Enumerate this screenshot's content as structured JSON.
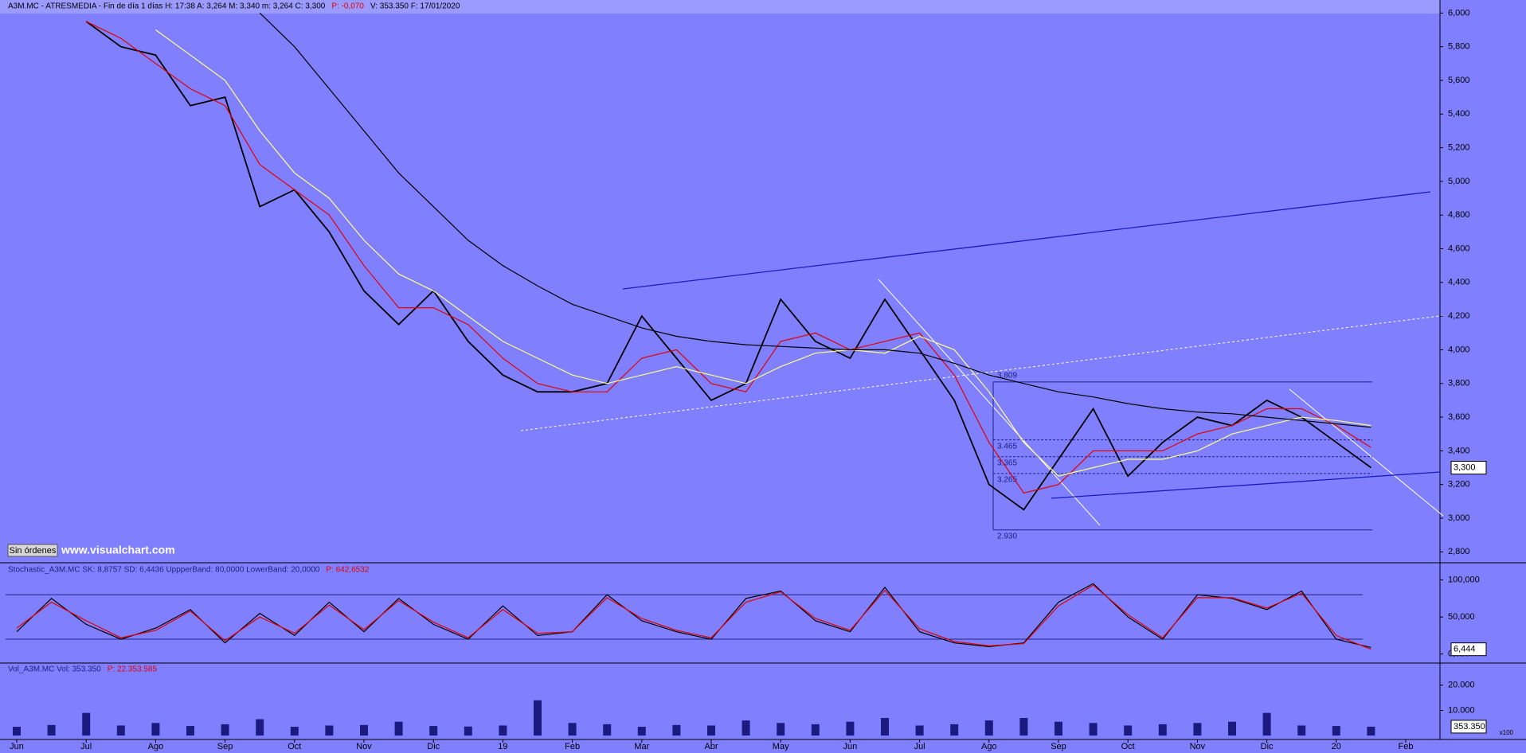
{
  "chart_data": [
    {
      "type": "line",
      "title": "A3M.MC - ATRESMEDIA - Fin de día 1 días  H: 17:38  A: 3,264  M: 3,340  m: 3,264  C: 3,300",
      "subtitle": "P: -0,070",
      "note": "V: 353.350  F: 17/01/2020",
      "categories": [
        "Jun",
        null,
        "Jul",
        null,
        "Ago",
        null,
        "Sep",
        null,
        "Oct",
        null,
        "Nov",
        null,
        "Dic",
        null,
        "19",
        null,
        "Feb",
        null,
        "Mar",
        null,
        "Abr",
        null,
        "May",
        null,
        "Jun",
        null,
        "Jul",
        null,
        "Ago",
        null,
        "Sep",
        null,
        "Oct",
        null,
        "Nov",
        null,
        "Dic",
        null,
        "20",
        null,
        "Feb"
      ],
      "series": [
        {
          "name": "close",
          "color": "#000000",
          "values": [
            null,
            null,
            5.95,
            5.8,
            5.75,
            5.45,
            5.5,
            4.85,
            4.95,
            4.7,
            4.35,
            4.15,
            4.35,
            4.05,
            3.85,
            3.75,
            3.75,
            3.8,
            4.2,
            3.95,
            3.7,
            3.8,
            4.3,
            4.05,
            3.95,
            4.3,
            4.0,
            3.7,
            3.2,
            3.05,
            3.35,
            3.65,
            3.25,
            3.45,
            3.6,
            3.55,
            3.7,
            3.6,
            3.45,
            3.3,
            null
          ]
        },
        {
          "name": "ma-fast",
          "color": "#e00000",
          "values": [
            null,
            null,
            5.95,
            5.85,
            5.7,
            5.55,
            5.45,
            5.1,
            4.95,
            4.8,
            4.5,
            4.25,
            4.25,
            4.15,
            3.95,
            3.8,
            3.75,
            3.75,
            3.95,
            4.0,
            3.8,
            3.75,
            4.05,
            4.1,
            4.0,
            4.05,
            4.1,
            3.85,
            3.45,
            3.15,
            3.2,
            3.4,
            3.4,
            3.4,
            3.5,
            3.55,
            3.65,
            3.65,
            3.55,
            3.42,
            null
          ]
        },
        {
          "name": "ma-mid",
          "color": "#ffff80",
          "values": [
            null,
            null,
            null,
            null,
            5.9,
            5.75,
            5.6,
            5.3,
            5.05,
            4.9,
            4.65,
            4.45,
            4.35,
            4.2,
            4.05,
            3.95,
            3.85,
            3.8,
            3.85,
            3.9,
            3.85,
            3.8,
            3.9,
            3.98,
            4.0,
            3.98,
            4.08,
            4.0,
            3.75,
            3.45,
            3.25,
            3.3,
            3.35,
            3.35,
            3.4,
            3.5,
            3.55,
            3.6,
            3.58,
            3.55,
            null
          ]
        },
        {
          "name": "ma-slow",
          "color": "#000000",
          "values": [
            null,
            null,
            null,
            null,
            null,
            null,
            null,
            6.0,
            5.8,
            5.55,
            5.3,
            5.05,
            4.85,
            4.65,
            4.5,
            4.38,
            4.27,
            4.2,
            4.13,
            4.08,
            4.05,
            4.03,
            4.02,
            4.01,
            4.0,
            4.0,
            3.98,
            3.92,
            3.85,
            3.8,
            3.75,
            3.72,
            3.68,
            3.65,
            3.63,
            3.62,
            3.6,
            3.58,
            3.56,
            3.54,
            null
          ]
        }
      ],
      "ylim": [
        2.74,
        6.03
      ],
      "yticks": [
        {
          "value": 2.8,
          "label": "2,800"
        },
        {
          "value": 3.0,
          "label": "3,000"
        },
        {
          "value": 3.2,
          "label": "3,200"
        },
        {
          "value": 3.4,
          "label": "3,400"
        },
        {
          "value": 3.6,
          "label": "3,600"
        },
        {
          "value": 3.8,
          "label": "3,800"
        },
        {
          "value": 4.0,
          "label": "4,000"
        },
        {
          "value": 4.2,
          "label": "4,200"
        },
        {
          "value": 4.4,
          "label": "4,400"
        },
        {
          "value": 4.6,
          "label": "4,600"
        },
        {
          "value": 4.8,
          "label": "4,800"
        },
        {
          "value": 5.0,
          "label": "5,000"
        },
        {
          "value": 5.2,
          "label": "5,200"
        },
        {
          "value": 5.4,
          "label": "5,400"
        },
        {
          "value": 5.6,
          "label": "5,600"
        },
        {
          "value": 5.8,
          "label": "5,800"
        },
        {
          "value": 6.0,
          "label": "6,000"
        }
      ],
      "levels": [
        {
          "value": 3.809,
          "label": "3.809"
        },
        {
          "value": 3.465,
          "label": "3.465"
        },
        {
          "value": 3.365,
          "label": "3.365"
        },
        {
          "value": 3.265,
          "label": "3.265"
        },
        {
          "value": 2.93,
          "label": "2.930"
        }
      ],
      "last": {
        "value": 3.3,
        "label": "3,300"
      },
      "button": "Sin órdenes",
      "watermark": "www.visualchart.com"
    },
    {
      "type": "line",
      "title": "Stochastic_A3M.MC  SK: 8,8757  SD: 6,4436  UppperBand: 80,0000  LowerBand: 20,0000",
      "subtitle": "P: 642,6532",
      "series": [
        {
          "name": "SK",
          "color": "#000000",
          "values": [
            30,
            75,
            40,
            20,
            35,
            60,
            15,
            55,
            25,
            70,
            30,
            75,
            40,
            20,
            65,
            25,
            30,
            80,
            45,
            30,
            20,
            75,
            85,
            45,
            30,
            90,
            30,
            15,
            10,
            15,
            70,
            95,
            50,
            20,
            80,
            75,
            60,
            85,
            20,
            8.8757,
            null
          ]
        },
        {
          "name": "SD",
          "color": "#e00000",
          "values": [
            35,
            70,
            45,
            22,
            32,
            58,
            18,
            50,
            28,
            66,
            33,
            72,
            43,
            22,
            60,
            28,
            30,
            76,
            48,
            32,
            22,
            70,
            84,
            48,
            32,
            86,
            34,
            17,
            11,
            14,
            65,
            93,
            53,
            22,
            76,
            76,
            62,
            82,
            25,
            6.4436,
            null
          ]
        }
      ],
      "bands": [
        80,
        20
      ],
      "ylim": [
        -10,
        121
      ],
      "yticks": [
        {
          "value": 0,
          "label": "0,000"
        },
        {
          "value": 50,
          "label": "50,000"
        },
        {
          "value": 100,
          "label": "100,000"
        }
      ],
      "last": {
        "value": 6.444,
        "label": "6,444"
      }
    },
    {
      "type": "bar",
      "title": "Vol_A3M.MC  Vol: 353.350",
      "subtitle": "P: 22.353.585",
      "color": "#1a1a80",
      "values": [
        3500,
        4200,
        9000,
        4000,
        5000,
        3800,
        4500,
        6500,
        3500,
        4000,
        4200,
        5500,
        3800,
        3600,
        4000,
        14000,
        5000,
        4500,
        3500,
        4200,
        4000,
        6000,
        5000,
        4500,
        5500,
        7000,
        4000,
        4500,
        6000,
        7000,
        5500,
        5000,
        4000,
        4500,
        5000,
        5500,
        9000,
        4000,
        3800,
        3533.5,
        null
      ],
      "ylim": [
        -1540,
        28460
      ],
      "yticks": [
        {
          "value": 10000,
          "label": "10.000"
        },
        {
          "value": 20000,
          "label": "20.000"
        }
      ],
      "last": {
        "value": 3533.5,
        "label": "353.350"
      },
      "scale_note": "x100"
    }
  ]
}
